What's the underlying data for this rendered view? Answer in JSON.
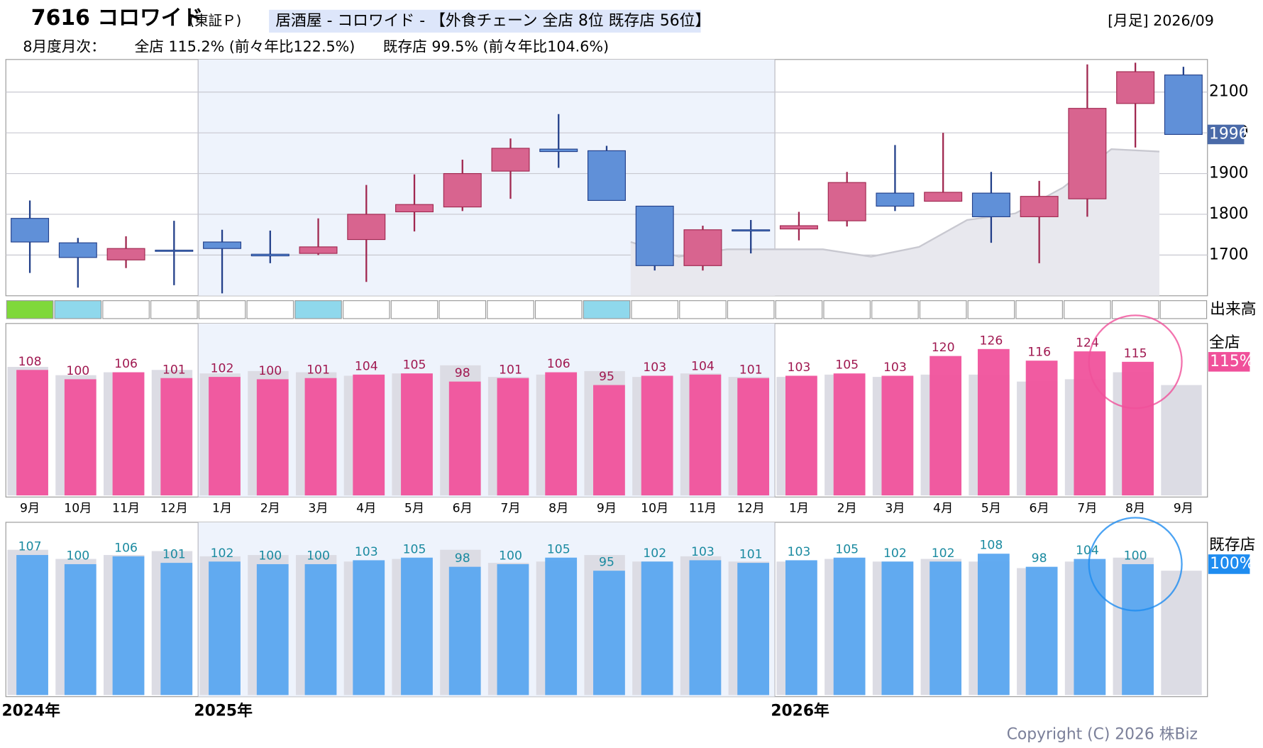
{
  "header": {
    "code_name": "7616 コロワイド",
    "market": "(東証Ｐ)",
    "industry": "居酒屋 - コロワイド - 【外食チェーン 全店 8位 既存店 56位】",
    "period": "[月足] 2026/09",
    "monthly_label": "8月度月次：",
    "all_stores": "全店 115.2% (前々年比122.5%)",
    "existing_stores": "既存店 99.5% (前々年比104.6%)",
    "copyright": "Copyright (C) 2026 株Biz"
  },
  "chart_data": [
    {
      "type": "candlestick",
      "open": [
        1790,
        1730,
        1688,
        1712,
        1732,
        1702,
        1704,
        1738,
        1806,
        1818,
        1906,
        1960,
        1956,
        1820,
        1674,
        1762,
        1764,
        1784,
        1852,
        1832,
        1852,
        1794,
        1838,
        2072,
        2142
      ],
      "high": [
        1834,
        1742,
        1746,
        1784,
        1762,
        1760,
        1790,
        1872,
        1898,
        1934,
        1986,
        2046,
        1968,
        1820,
        1772,
        1786,
        1806,
        1904,
        1970,
        2000,
        1904,
        1882,
        2168,
        2172,
        2162
      ],
      "low": [
        1656,
        1620,
        1668,
        1626,
        1606,
        1680,
        1700,
        1634,
        1758,
        1808,
        1838,
        1914,
        1834,
        1662,
        1662,
        1704,
        1736,
        1770,
        1808,
        1832,
        1730,
        1680,
        1794,
        1964,
        1996
      ],
      "close": [
        1732,
        1694,
        1716,
        1710,
        1716,
        1698,
        1720,
        1800,
        1824,
        1900,
        1962,
        1954,
        1834,
        1674,
        1762,
        1760,
        1772,
        1878,
        1820,
        1854,
        1794,
        1844,
        2060,
        2150,
        1996
      ],
      "up_color": "#d8648f",
      "down_color": "#6090d8",
      "ylim": [
        1600,
        2180
      ],
      "yticks": [
        1700,
        1800,
        1900,
        2000,
        2100
      ],
      "grid": true,
      "last_price": 1996,
      "area": {
        "color": "#e8e8ee",
        "values": [
          null,
          null,
          null,
          null,
          null,
          null,
          null,
          null,
          null,
          null,
          null,
          null,
          null,
          1732,
          1696,
          1714,
          1714,
          1714,
          1696,
          1720,
          1786,
          1802,
          1866,
          1960,
          1954
        ]
      },
      "volume_label": "出来高",
      "volume_colors": [
        "#7fd83a",
        "#8fd8ec",
        "#ffffff",
        "#ffffff",
        "#ffffff",
        "#ffffff",
        "#8fd8ec",
        "#ffffff",
        "#ffffff",
        "#ffffff",
        "#ffffff",
        "#ffffff",
        "#8fd8ec",
        "#ffffff",
        "#ffffff",
        "#ffffff",
        "#ffffff",
        "#ffffff",
        "#ffffff",
        "#ffffff",
        "#ffffff",
        "#ffffff",
        "#ffffff",
        "#ffffff",
        "#ffffff"
      ]
    },
    {
      "type": "bar",
      "name": "全店",
      "current_label": "115%",
      "current_color": "#f0509a",
      "categories": [
        "9月",
        "10月",
        "11月",
        "12月",
        "1月",
        "2月",
        "3月",
        "4月",
        "5月",
        "6月",
        "7月",
        "8月",
        "9月",
        "10月",
        "11月",
        "12月",
        "1月",
        "2月",
        "3月",
        "4月",
        "5月",
        "6月",
        "7月",
        "8月",
        "9月"
      ],
      "ylim": [
        0,
        148
      ],
      "series": [
        {
          "color": "#dcdce4",
          "values": [
            110.6,
            103.5,
            106,
            108,
            105,
            107,
            106,
            103,
            105,
            112,
            102,
            104,
            107,
            102,
            105,
            102,
            102,
            104,
            102,
            104,
            104,
            98,
            100,
            106,
            95
          ]
        },
        {
          "color": "#f0529c",
          "label_color": "#a01850",
          "values": [
            108,
            100,
            106,
            101,
            102,
            100,
            101,
            104,
            105,
            98,
            101,
            106,
            95,
            103,
            104,
            101,
            103,
            105,
            103,
            120,
            126,
            116,
            124,
            115,
            null
          ]
        }
      ]
    },
    {
      "type": "bar",
      "name": "既存店",
      "current_label": "100%",
      "current_color": "#1e8cf0",
      "x_labels": [
        "2024年",
        null,
        null,
        null,
        "2025年",
        null,
        null,
        null,
        null,
        null,
        null,
        null,
        null,
        null,
        null,
        null,
        "2026年",
        null,
        null,
        null,
        null,
        null,
        null,
        null,
        null
      ],
      "ylim": [
        0,
        132
      ],
      "series": [
        {
          "color": "#dcdce4",
          "values": [
            111,
            104,
            107,
            110,
            106,
            107,
            107,
            102,
            104,
            111,
            101,
            102,
            107,
            102,
            106,
            102,
            102,
            104,
            102,
            104,
            102,
            97,
            102,
            105,
            95
          ]
        },
        {
          "color": "#5aa6f0",
          "label_color": "#1a8aa0",
          "values": [
            107,
            100,
            106,
            101,
            102,
            100,
            100,
            103,
            105,
            98,
            100,
            105,
            95,
            102,
            103,
            101,
            103,
            105,
            102,
            102,
            108,
            98,
            104,
            100,
            null
          ]
        }
      ]
    }
  ]
}
